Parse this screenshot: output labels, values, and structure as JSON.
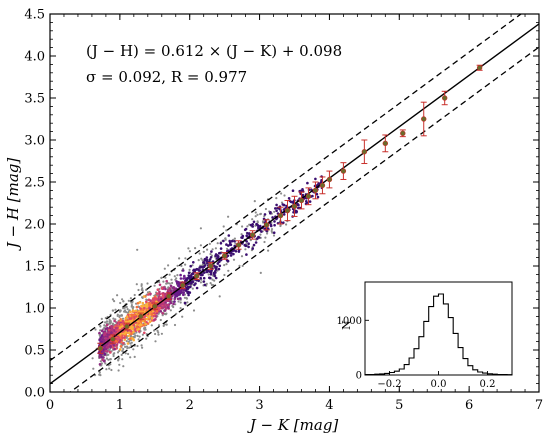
{
  "chart_data": [
    {
      "type": "scatter",
      "title": "",
      "xlabel": "J − K [mag]",
      "ylabel": "J − H [mag]",
      "xlim": [
        0,
        7
      ],
      "ylim": [
        0,
        4.5
      ],
      "xticks": [
        "0",
        "1",
        "2",
        "3",
        "4",
        "5",
        "6",
        "7"
      ],
      "yticks": [
        "0.0",
        "0.5",
        "1.0",
        "1.5",
        "2.0",
        "2.5",
        "3.0",
        "3.5",
        "4.0",
        "4.5"
      ],
      "grid": false,
      "annotations": [
        "(J − H) = 0.612 × (J − K) + 0.098",
        "σ = 0.092, R = 0.977"
      ],
      "fit": {
        "slope": 0.612,
        "intercept": 0.098,
        "sigma": 0.092,
        "R": 0.977,
        "band_offset": 0.276
      },
      "binned_x": [
        0.72,
        0.9,
        1.1,
        1.3,
        1.5,
        1.7,
        1.9,
        2.1,
        2.3,
        2.5,
        2.7,
        2.9,
        3.1,
        3.3,
        3.4,
        3.5,
        3.6,
        3.7,
        3.8,
        3.9,
        4.0,
        4.2,
        4.5,
        4.8,
        5.05,
        5.35,
        5.65,
        6.15
      ],
      "binned_y": [
        0.52,
        0.63,
        0.78,
        0.9,
        1.02,
        1.14,
        1.27,
        1.38,
        1.5,
        1.62,
        1.75,
        1.87,
        1.99,
        2.1,
        2.16,
        2.21,
        2.28,
        2.33,
        2.4,
        2.46,
        2.53,
        2.63,
        2.86,
        2.96,
        3.08,
        3.25,
        3.5,
        3.86
      ],
      "binned_err": [
        0.06,
        0.05,
        0.04,
        0.04,
        0.04,
        0.04,
        0.04,
        0.04,
        0.04,
        0.04,
        0.05,
        0.05,
        0.06,
        0.1,
        0.12,
        0.12,
        0.1,
        0.1,
        0.1,
        0.1,
        0.1,
        0.1,
        0.14,
        0.1,
        0.04,
        0.2,
        0.08,
        0.03
      ]
    },
    {
      "type": "histogram",
      "title": "",
      "xlabel": "",
      "ylabel": "N",
      "xlim": [
        -0.3,
        0.3
      ],
      "ylim": [
        0,
        1700
      ],
      "xticks": [
        "−0.2",
        "0.0",
        "0.2"
      ],
      "yticks": [
        "0",
        "1000"
      ],
      "bin_centers": [
        -0.29,
        -0.27,
        -0.25,
        -0.23,
        -0.21,
        -0.19,
        -0.17,
        -0.15,
        -0.13,
        -0.11,
        -0.09,
        -0.07,
        -0.05,
        -0.03,
        -0.01,
        0.01,
        0.03,
        0.05,
        0.07,
        0.09,
        0.11,
        0.13,
        0.15,
        0.17,
        0.19,
        0.21,
        0.23,
        0.25,
        0.27,
        0.29
      ],
      "counts": [
        8,
        10,
        14,
        20,
        30,
        45,
        70,
        110,
        190,
        310,
        480,
        700,
        980,
        1250,
        1440,
        1480,
        1300,
        1050,
        760,
        500,
        300,
        170,
        95,
        55,
        35,
        22,
        15,
        10,
        7,
        5
      ]
    }
  ]
}
